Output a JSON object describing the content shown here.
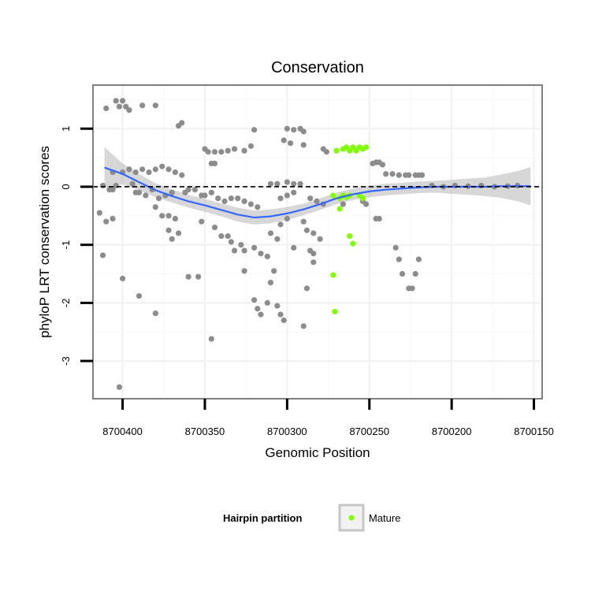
{
  "chart_data": {
    "type": "scatter",
    "title": "Conservation",
    "xlabel": "Genomic Position",
    "ylabel": "phyloP LRT conservation scores",
    "xlim": [
      8700145,
      8700418
    ],
    "x_reversed": true,
    "ylim": [
      -3.65,
      1.75
    ],
    "x_ticks": [
      8700400,
      8700350,
      8700300,
      8700250,
      8700200,
      8700150
    ],
    "x_tick_labels": [
      "8700400",
      "8700350",
      "8700300",
      "8700250",
      "8700200",
      "8700150"
    ],
    "y_ticks": [
      1,
      0,
      -1,
      -2,
      -3
    ],
    "y_tick_labels": [
      "1",
      "0",
      "-1",
      "-2",
      "-3"
    ],
    "grid": true,
    "reference_line": {
      "y": 0,
      "style": "dashed",
      "color": "#000000"
    },
    "colors": {
      "other": "#8c8c8c",
      "mature": "#7fff00",
      "smooth": "#3366ff",
      "ribbon": "#bdbdbd"
    },
    "legend": {
      "title": "Hairpin partition",
      "placement": "bottom",
      "entries": [
        {
          "label": "Mature",
          "color": "#7fff00"
        }
      ]
    },
    "series": [
      {
        "points": [
          [
            8700404,
            1.48
          ],
          [
            8700400,
            1.48
          ],
          [
            8700402,
            1.38
          ],
          [
            8700398,
            1.38
          ],
          [
            8700396,
            1.32
          ],
          [
            8700388,
            1.4
          ],
          [
            8700380,
            1.4
          ],
          [
            8700410,
            1.35
          ],
          [
            8700364,
            1.1
          ],
          [
            8700366,
            1.05
          ],
          [
            8700350,
            0.65
          ],
          [
            8700348,
            0.6
          ],
          [
            8700344,
            0.6
          ],
          [
            8700340,
            0.6
          ],
          [
            8700336,
            0.62
          ],
          [
            8700332,
            0.65
          ],
          [
            8700326,
            0.62
          ],
          [
            8700322,
            0.7
          ],
          [
            8700320,
            0.98
          ],
          [
            8700300,
            1.0
          ],
          [
            8700296,
            0.98
          ],
          [
            8700292,
            1.0
          ],
          [
            8700290,
            0.95
          ],
          [
            8700302,
            0.8
          ],
          [
            8700298,
            0.75
          ],
          [
            8700290,
            0.72
          ],
          [
            8700276,
            0.6
          ],
          [
            8700278,
            0.65
          ],
          [
            8700406,
            0.25
          ],
          [
            8700400,
            0.25
          ],
          [
            8700396,
            0.3
          ],
          [
            8700392,
            0.25
          ],
          [
            8700388,
            0.3
          ],
          [
            8700384,
            0.25
          ],
          [
            8700380,
            0.3
          ],
          [
            8700376,
            0.35
          ],
          [
            8700372,
            0.3
          ],
          [
            8700368,
            0.25
          ],
          [
            8700364,
            0.2
          ],
          [
            8700346,
            0.4
          ],
          [
            8700344,
            0.4
          ],
          [
            8700248,
            0.4
          ],
          [
            8700246,
            0.42
          ],
          [
            8700244,
            0.42
          ],
          [
            8700242,
            0.38
          ],
          [
            8700240,
            0.22
          ],
          [
            8700236,
            0.22
          ],
          [
            8700232,
            0.2
          ],
          [
            8700228,
            0.2
          ],
          [
            8700226,
            0.2
          ],
          [
            8700222,
            0.2
          ],
          [
            8700220,
            0.2
          ],
          [
            8700218,
            0.2
          ],
          [
            8700412,
            0.02
          ],
          [
            8700408,
            -0.05
          ],
          [
            8700406,
            -0.05
          ],
          [
            8700404,
            0.02
          ],
          [
            8700394,
            0.05
          ],
          [
            8700392,
            -0.1
          ],
          [
            8700390,
            -0.1
          ],
          [
            8700386,
            -0.15
          ],
          [
            8700382,
            -0.05
          ],
          [
            8700378,
            -0.2
          ],
          [
            8700374,
            -0.15
          ],
          [
            8700370,
            -0.1
          ],
          [
            8700362,
            -0.1
          ],
          [
            8700360,
            -0.05
          ],
          [
            8700356,
            -0.05
          ],
          [
            8700352,
            -0.15
          ],
          [
            8700350,
            -0.15
          ],
          [
            8700346,
            -0.1
          ],
          [
            8700342,
            -0.2
          ],
          [
            8700338,
            -0.25
          ],
          [
            8700334,
            -0.2
          ],
          [
            8700330,
            -0.2
          ],
          [
            8700326,
            -0.25
          ],
          [
            8700322,
            -0.3
          ],
          [
            8700318,
            -0.35
          ],
          [
            8700310,
            0.05
          ],
          [
            8700306,
            0.05
          ],
          [
            8700300,
            0.08
          ],
          [
            8700296,
            0.05
          ],
          [
            8700292,
            0.05
          ],
          [
            8700296,
            -0.1
          ],
          [
            8700300,
            -0.15
          ],
          [
            8700304,
            -0.2
          ],
          [
            8700286,
            -0.2
          ],
          [
            8700282,
            -0.25
          ],
          [
            8700278,
            -0.3
          ],
          [
            8700266,
            -0.3
          ],
          [
            8700254,
            -0.25
          ],
          [
            8700252,
            -0.3
          ],
          [
            8700246,
            -0.55
          ],
          [
            8700244,
            -0.55
          ],
          [
            8700414,
            -0.45
          ],
          [
            8700410,
            -0.6
          ],
          [
            8700406,
            -0.55
          ],
          [
            8700380,
            -0.35
          ],
          [
            8700376,
            -0.5
          ],
          [
            8700372,
            -0.5
          ],
          [
            8700368,
            -0.55
          ],
          [
            8700372,
            -0.75
          ],
          [
            8700370,
            -0.9
          ],
          [
            8700366,
            -0.8
          ],
          [
            8700352,
            -0.6
          ],
          [
            8700344,
            -0.7
          ],
          [
            8700340,
            -0.85
          ],
          [
            8700336,
            -0.85
          ],
          [
            8700334,
            -0.95
          ],
          [
            8700332,
            -1.1
          ],
          [
            8700328,
            -1.0
          ],
          [
            8700326,
            -1.1
          ],
          [
            8700320,
            -1.05
          ],
          [
            8700316,
            -1.15
          ],
          [
            8700312,
            -1.2
          ],
          [
            8700310,
            -0.8
          ],
          [
            8700306,
            -0.9
          ],
          [
            8700304,
            -0.65
          ],
          [
            8700300,
            -0.55
          ],
          [
            8700290,
            -0.6
          ],
          [
            8700288,
            -0.75
          ],
          [
            8700284,
            -0.8
          ],
          [
            8700280,
            -0.9
          ],
          [
            8700296,
            -1.05
          ],
          [
            8700286,
            -1.1
          ],
          [
            8700284,
            -1.15
          ],
          [
            8700412,
            -1.18
          ],
          [
            8700400,
            -1.58
          ],
          [
            8700390,
            -1.88
          ],
          [
            8700380,
            -2.18
          ],
          [
            8700360,
            -1.55
          ],
          [
            8700354,
            -1.55
          ],
          [
            8700346,
            -2.62
          ],
          [
            8700326,
            -1.45
          ],
          [
            8700320,
            -1.95
          ],
          [
            8700318,
            -2.1
          ],
          [
            8700316,
            -2.2
          ],
          [
            8700312,
            -2.0
          ],
          [
            8700310,
            -1.65
          ],
          [
            8700308,
            -1.45
          ],
          [
            8700306,
            -2.05
          ],
          [
            8700304,
            -2.2
          ],
          [
            8700302,
            -2.3
          ],
          [
            8700290,
            -2.4
          ],
          [
            8700288,
            -1.75
          ],
          [
            8700284,
            -1.3
          ],
          [
            8700234,
            -1.05
          ],
          [
            8700232,
            -1.25
          ],
          [
            8700230,
            -1.5
          ],
          [
            8700226,
            -1.75
          ],
          [
            8700224,
            -1.75
          ],
          [
            8700222,
            -1.5
          ],
          [
            8700220,
            -1.25
          ],
          [
            8700402,
            -3.45
          ],
          [
            8700212,
            0.02
          ],
          [
            8700205,
            0.0
          ],
          [
            8700198,
            0.02
          ],
          [
            8700190,
            0.01
          ],
          [
            8700182,
            0.02
          ],
          [
            8700174,
            0.0
          ],
          [
            8700166,
            0.01
          ],
          [
            8700160,
            0.02
          ]
        ]
      },
      {
        "name": "Mature",
        "points": [
          [
            8700270,
            0.62
          ],
          [
            8700266,
            0.65
          ],
          [
            8700264,
            0.68
          ],
          [
            8700262,
            0.62
          ],
          [
            8700260,
            0.68
          ],
          [
            8700258,
            0.62
          ],
          [
            8700256,
            0.68
          ],
          [
            8700254,
            0.65
          ],
          [
            8700252,
            0.68
          ],
          [
            8700272,
            -0.15
          ],
          [
            8700268,
            -0.2
          ],
          [
            8700266,
            -0.15
          ],
          [
            8700264,
            -0.18
          ],
          [
            8700262,
            -0.15
          ],
          [
            8700268,
            -0.38
          ],
          [
            8700256,
            -0.15
          ],
          [
            8700254,
            -0.2
          ],
          [
            8700262,
            -0.85
          ],
          [
            8700260,
            -0.98
          ],
          [
            8700272,
            -1.52
          ],
          [
            8700271,
            -2.15
          ]
        ]
      }
    ],
    "smooth_line": [
      [
        8700411,
        0.33
      ],
      [
        8700400,
        0.22
      ],
      [
        8700390,
        0.08
      ],
      [
        8700380,
        -0.06
      ],
      [
        8700370,
        -0.16
      ],
      [
        8700360,
        -0.25
      ],
      [
        8700350,
        -0.32
      ],
      [
        8700340,
        -0.4
      ],
      [
        8700330,
        -0.48
      ],
      [
        8700320,
        -0.53
      ],
      [
        8700310,
        -0.51
      ],
      [
        8700300,
        -0.46
      ],
      [
        8700290,
        -0.39
      ],
      [
        8700280,
        -0.3
      ],
      [
        8700270,
        -0.2
      ],
      [
        8700260,
        -0.13
      ],
      [
        8700250,
        -0.08
      ],
      [
        8700240,
        -0.05
      ],
      [
        8700230,
        -0.03
      ],
      [
        8700220,
        -0.01
      ],
      [
        8700210,
        0.0
      ],
      [
        8700200,
        0.0
      ],
      [
        8700190,
        0.0
      ],
      [
        8700180,
        0.0
      ],
      [
        8700170,
        0.01
      ],
      [
        8700160,
        0.01
      ],
      [
        8700152,
        0.01
      ]
    ],
    "smooth_ribbon_halfwidth": [
      0.35,
      0.18,
      0.14,
      0.12,
      0.11,
      0.11,
      0.11,
      0.11,
      0.12,
      0.12,
      0.12,
      0.11,
      0.1,
      0.1,
      0.1,
      0.1,
      0.1,
      0.1,
      0.1,
      0.1,
      0.1,
      0.12,
      0.14,
      0.16,
      0.2,
      0.26,
      0.33
    ]
  }
}
